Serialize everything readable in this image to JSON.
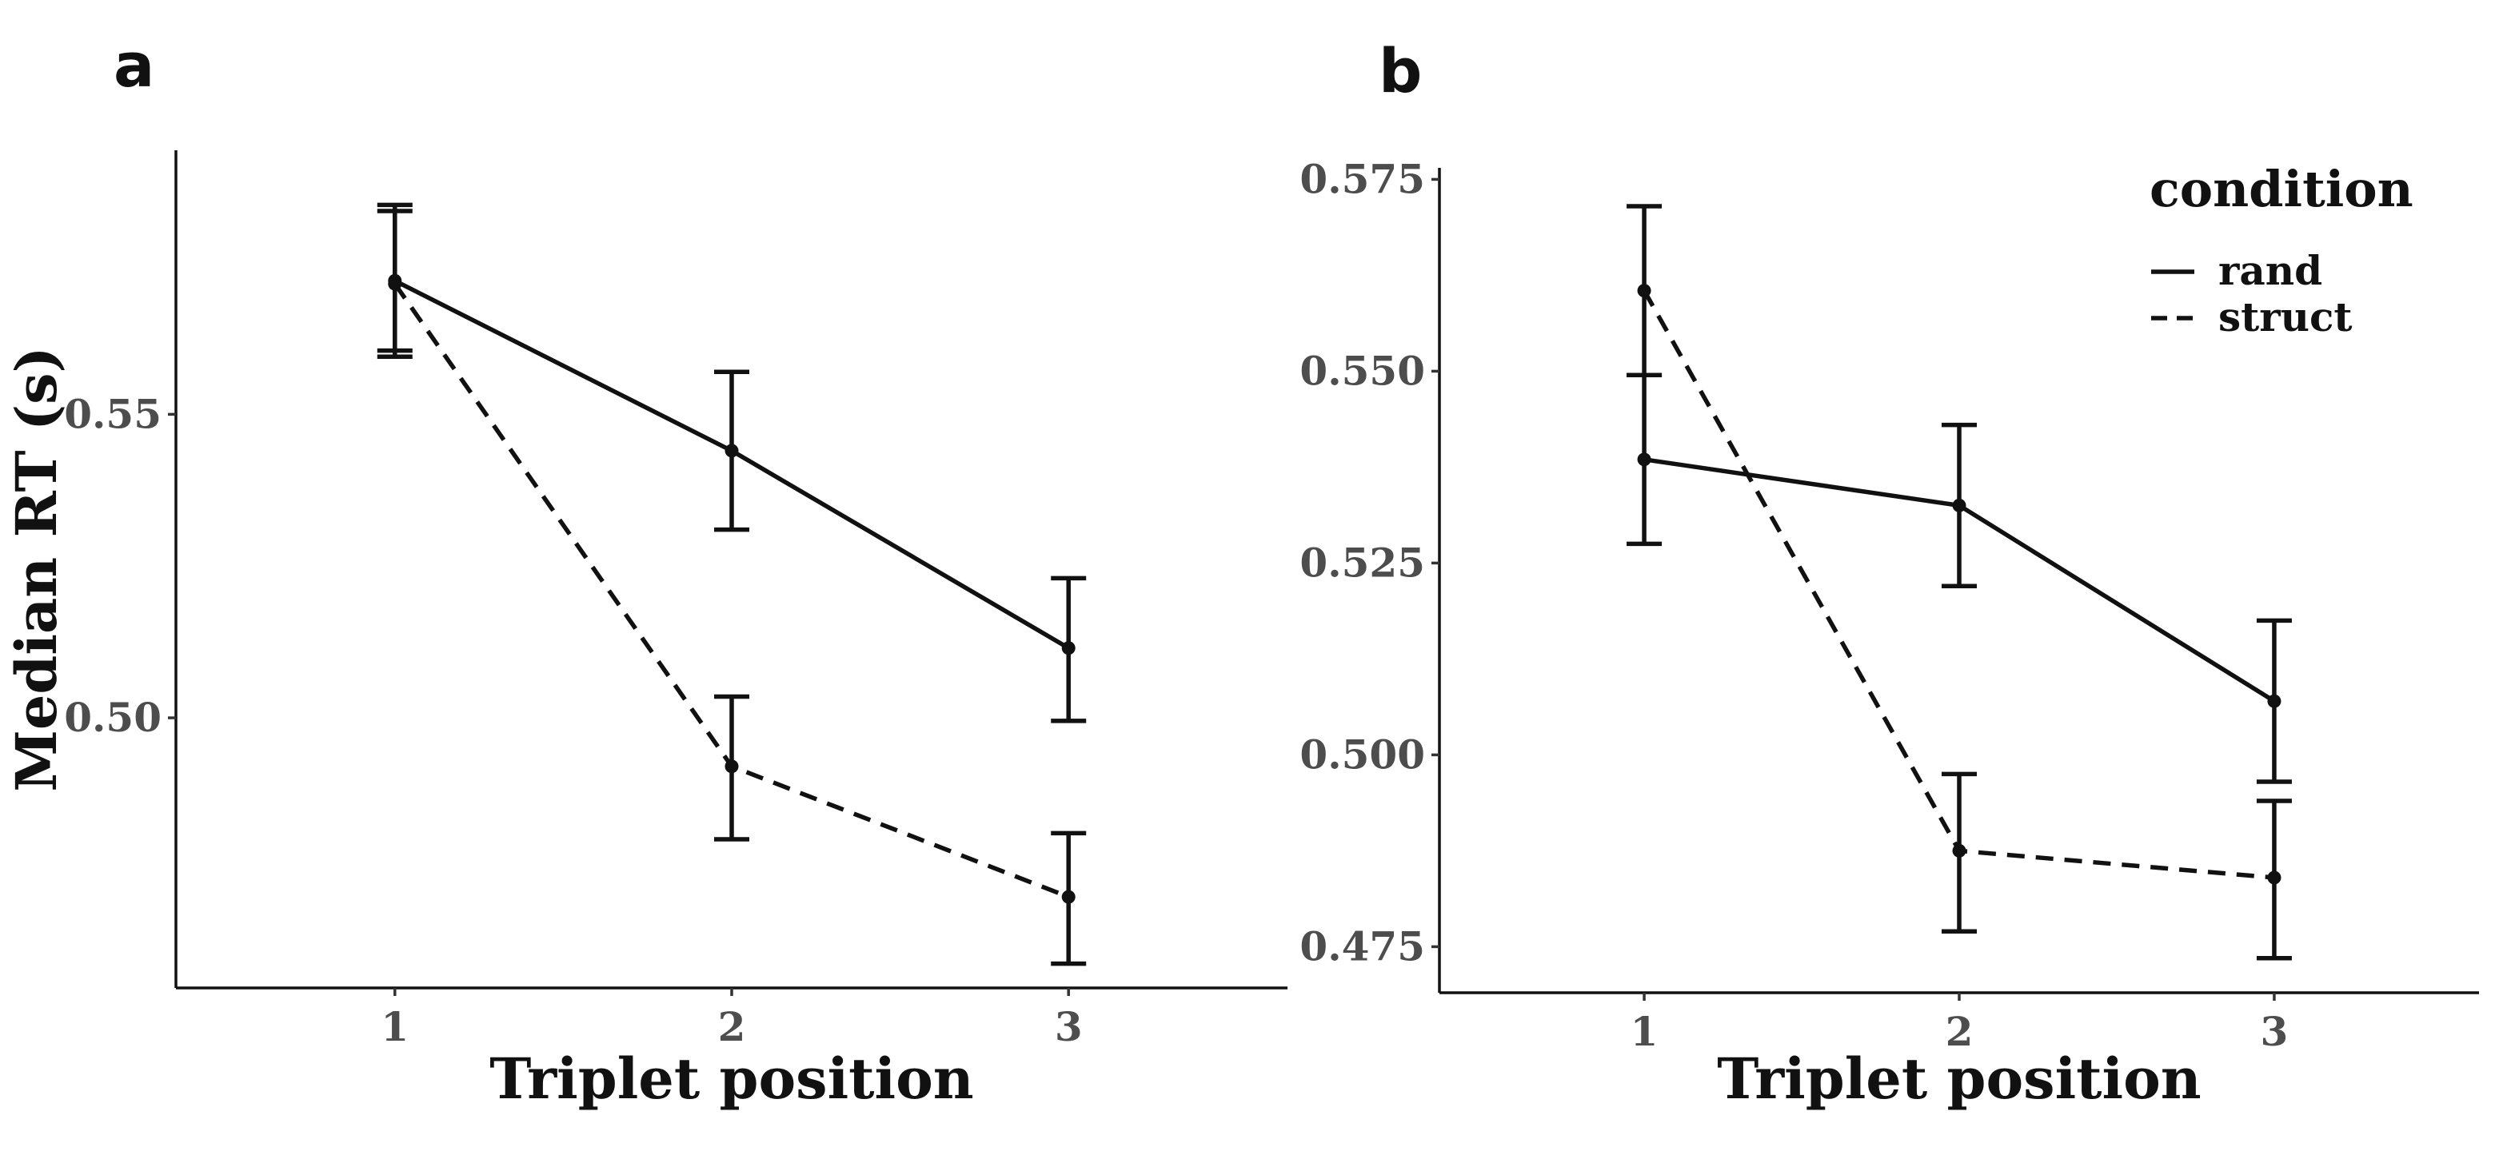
{
  "colors": {
    "line": "#111111",
    "tick_text": "#4d4d4d",
    "background": "#ffffff"
  },
  "legend": {
    "title": "condition",
    "position": "top-right",
    "items": [
      {
        "label": "rand",
        "linetype": "solid"
      },
      {
        "label": "struct",
        "linetype": "dashed"
      }
    ]
  },
  "chart_data": [
    {
      "type": "line",
      "panel": "a",
      "title": "",
      "xlabel": "Triplet position",
      "ylabel": "Median RT (s)",
      "x": [
        1,
        2,
        3
      ],
      "x_tick_labels": [
        "1",
        "2",
        "3"
      ],
      "xlim": [
        0.35,
        3.65
      ],
      "y_ticks": [
        0.5,
        0.55
      ],
      "y_tick_labels": [
        "0.50",
        "0.55"
      ],
      "ylim": [
        0.4555,
        0.5935
      ],
      "grid": false,
      "series": [
        {
          "name": "rand",
          "linetype": "solid",
          "values": [
            0.572,
            0.544,
            0.5115
          ],
          "lower": [
            0.5605,
            0.531,
            0.4995
          ],
          "upper": [
            0.5845,
            0.557,
            0.523
          ]
        },
        {
          "name": "struct",
          "linetype": "dashed",
          "values": [
            0.5715,
            0.492,
            0.4705
          ],
          "lower": [
            0.5595,
            0.48,
            0.4595
          ],
          "upper": [
            0.5835,
            0.5035,
            0.481
          ]
        }
      ]
    },
    {
      "type": "line",
      "panel": "b",
      "title": "",
      "xlabel": "Triplet position",
      "ylabel": "",
      "x": [
        1,
        2,
        3
      ],
      "x_tick_labels": [
        "1",
        "2",
        "3"
      ],
      "xlim": [
        0.35,
        3.65
      ],
      "y_ticks": [
        0.475,
        0.5,
        0.525,
        0.55,
        0.575
      ],
      "y_tick_labels": [
        "0.475",
        "0.500",
        "0.525",
        "0.550",
        "0.575"
      ],
      "ylim": [
        0.469,
        0.5765
      ],
      "grid": false,
      "series": [
        {
          "name": "rand",
          "linetype": "solid",
          "values": [
            0.5385,
            0.5325,
            0.507
          ],
          "lower": [
            0.5275,
            0.522,
            0.4965
          ],
          "upper": [
            0.5495,
            0.543,
            0.5175
          ]
        },
        {
          "name": "struct",
          "linetype": "dashed",
          "values": [
            0.5605,
            0.4875,
            0.484
          ],
          "lower": [
            0.5495,
            0.477,
            0.4735
          ],
          "upper": [
            0.5715,
            0.4975,
            0.494
          ]
        }
      ]
    }
  ]
}
